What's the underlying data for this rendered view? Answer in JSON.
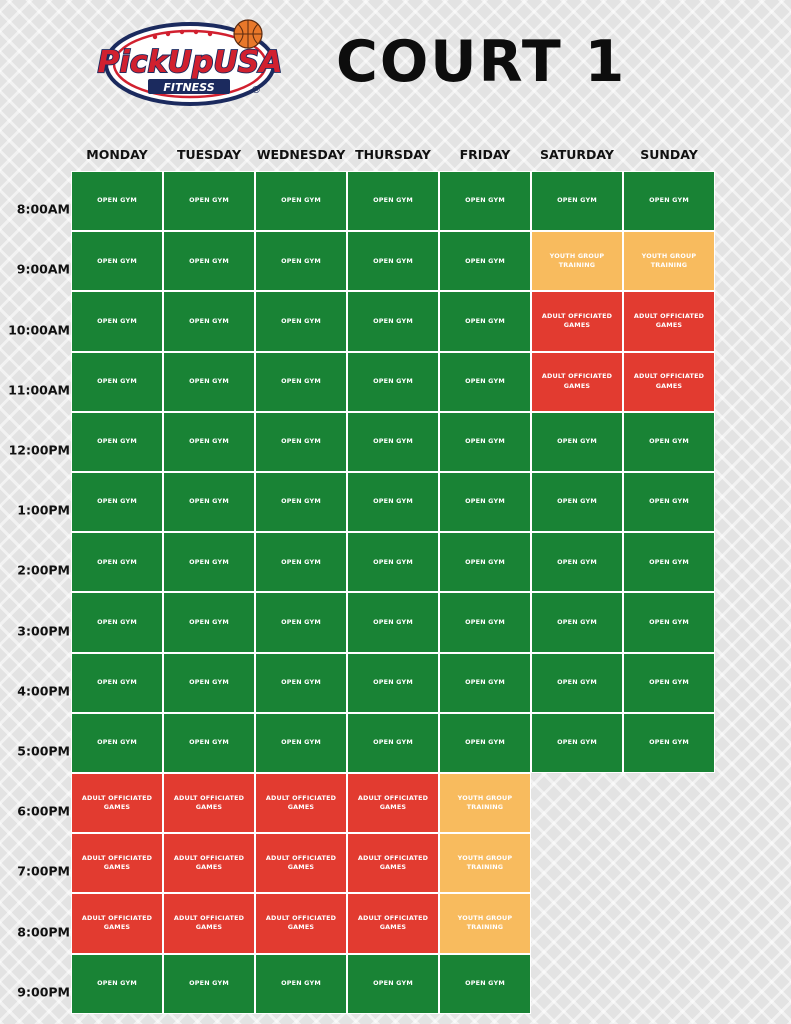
{
  "logo": {
    "brand": "PickUpUSA",
    "sub": "FITNESS",
    "reg": "®",
    "colors": {
      "red": "#d1202f",
      "navy": "#1b2a5e",
      "ball": "#e8782a"
    }
  },
  "title": "COURT 1",
  "colors": {
    "open": "#198335",
    "adult": "#e23b30",
    "youth": "#f8bb5e"
  },
  "days": [
    "MONDAY",
    "TUESDAY",
    "WEDNESDAY",
    "THURSDAY",
    "FRIDAY",
    "SATURDAY",
    "SUNDAY"
  ],
  "times": [
    "8:00AM",
    "9:00AM",
    "10:00AM",
    "11:00AM",
    "12:00PM",
    "1:00PM",
    "2:00PM",
    "3:00PM",
    "4:00PM",
    "5:00PM",
    "6:00PM",
    "7:00PM",
    "8:00PM",
    "9:00PM"
  ],
  "activities": {
    "open": [
      "OPEN GYM"
    ],
    "youth": [
      "YOUTH GROUP",
      "TRAINING"
    ],
    "adult": [
      "ADULT OFFICIATED",
      "GAMES"
    ]
  },
  "schedule": [
    [
      "open",
      "open",
      "open",
      "open",
      "open",
      "open",
      "open"
    ],
    [
      "open",
      "open",
      "open",
      "open",
      "open",
      "youth",
      "youth"
    ],
    [
      "open",
      "open",
      "open",
      "open",
      "open",
      "adult",
      "adult"
    ],
    [
      "open",
      "open",
      "open",
      "open",
      "open",
      "adult",
      "adult"
    ],
    [
      "open",
      "open",
      "open",
      "open",
      "open",
      "open",
      "open"
    ],
    [
      "open",
      "open",
      "open",
      "open",
      "open",
      "open",
      "open"
    ],
    [
      "open",
      "open",
      "open",
      "open",
      "open",
      "open",
      "open"
    ],
    [
      "open",
      "open",
      "open",
      "open",
      "open",
      "open",
      "open"
    ],
    [
      "open",
      "open",
      "open",
      "open",
      "open",
      "open",
      "open"
    ],
    [
      "open",
      "open",
      "open",
      "open",
      "open",
      "open",
      "open"
    ],
    [
      "adult",
      "adult",
      "adult",
      "adult",
      "youth",
      null,
      null
    ],
    [
      "adult",
      "adult",
      "adult",
      "adult",
      "youth",
      null,
      null
    ],
    [
      "adult",
      "adult",
      "adult",
      "adult",
      "youth",
      null,
      null
    ],
    [
      "open",
      "open",
      "open",
      "open",
      "open",
      null,
      null
    ]
  ]
}
